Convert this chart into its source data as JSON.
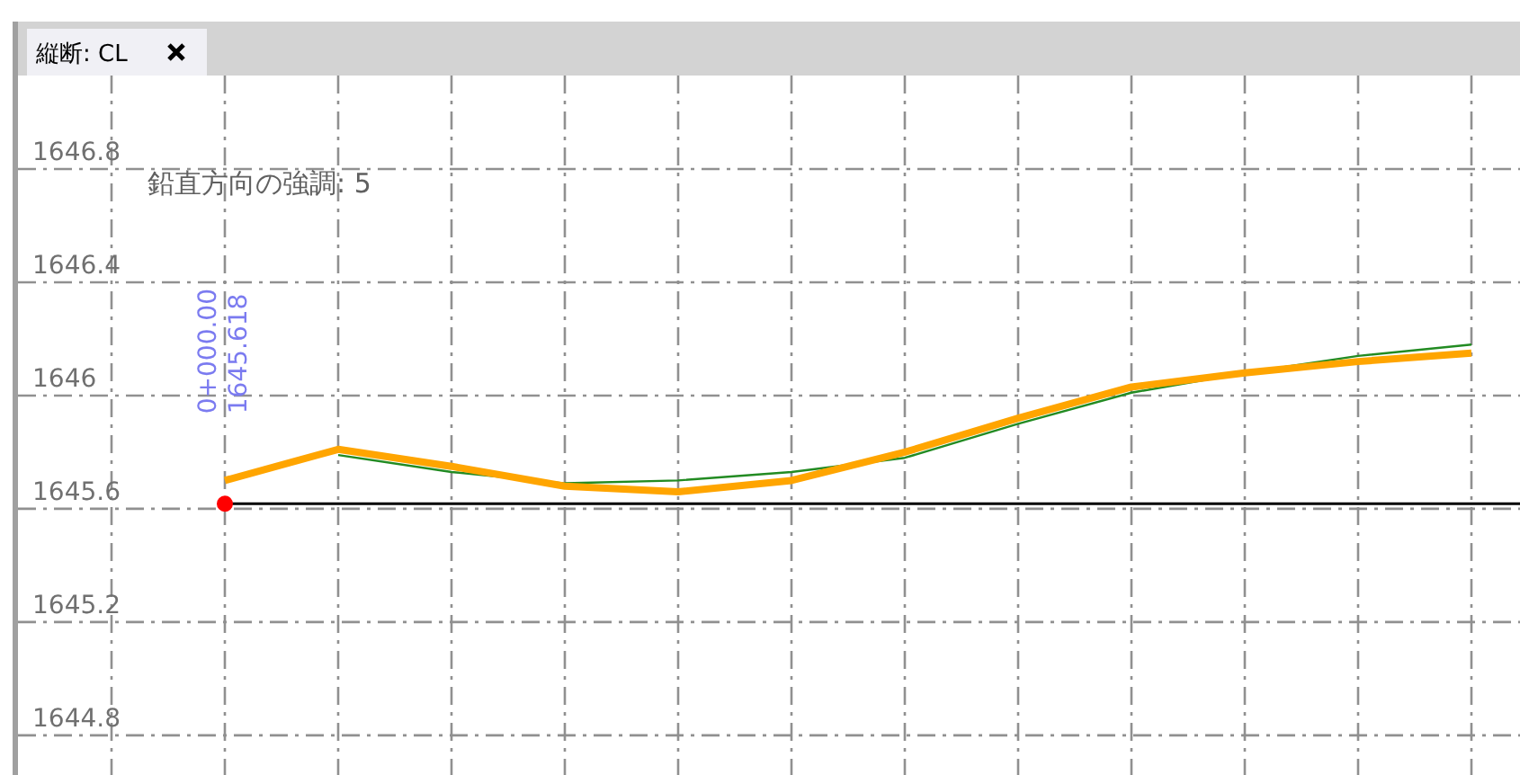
{
  "chart_data": {
    "type": "line",
    "title": "縦断: CL",
    "annotations": [
      "鉛直方向の強調: 5",
      "0+000.00",
      "1645.618"
    ],
    "categories": [
      null,
      null,
      null,
      null,
      null,
      null,
      null,
      null,
      null,
      null,
      null,
      null,
      null
    ],
    "series": [
      {
        "color": "#228b22",
        "values": [
          null,
          null,
          1645.79,
          1645.73,
          1645.69,
          1645.7,
          1645.73,
          1645.78,
          1645.9,
          1646.01,
          1646.08,
          1646.14,
          1646.18
        ]
      },
      {
        "color": "#ffa500",
        "values": [
          null,
          1645.7,
          1645.81,
          1645.75,
          1645.68,
          1645.66,
          1645.7,
          1645.8,
          1645.92,
          1646.03,
          1646.08,
          1646.12,
          1646.15
        ]
      },
      {
        "type": "scatter",
        "color": "#ff0000",
        "marker": "circle",
        "values": [
          null,
          1645.618,
          null,
          null,
          null,
          null,
          null,
          null,
          null,
          null,
          null,
          null,
          null
        ]
      }
    ],
    "ref_lines": [
      {
        "axis": "y",
        "value": 1645.618,
        "color": "#000000"
      }
    ],
    "ylim": [
      1644.66,
      1647.13
    ],
    "yticks": [
      1644.8,
      1645.2,
      1645.6,
      1646,
      1646.4,
      1646.8
    ],
    "grid": true,
    "tick_labels": "y",
    "line_style": "solid"
  }
}
